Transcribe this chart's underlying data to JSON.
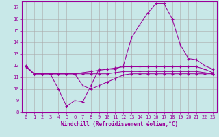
{
  "background_color": "#c8e8e8",
  "line_color": "#990099",
  "grid_color": "#aaaaaa",
  "xlabel": "Windchill (Refroidissement éolien,°C)",
  "xlabel_color": "#990099",
  "ylim": [
    8,
    17.5
  ],
  "xlim": [
    -0.5,
    23.5
  ],
  "xticks": [
    0,
    1,
    2,
    3,
    4,
    5,
    6,
    7,
    8,
    9,
    10,
    11,
    12,
    13,
    14,
    15,
    16,
    17,
    18,
    19,
    20,
    21,
    22,
    23
  ],
  "yticks": [
    8,
    9,
    10,
    11,
    12,
    13,
    14,
    15,
    16,
    17
  ],
  "line1_x": [
    0,
    1,
    2,
    3,
    4,
    5,
    6,
    7,
    8,
    9,
    10,
    11,
    12,
    13,
    14,
    15,
    16,
    17,
    18,
    19,
    20,
    21,
    22,
    23
  ],
  "line1_y": [
    12.0,
    11.3,
    11.3,
    11.3,
    10.0,
    8.5,
    9.0,
    8.9,
    10.3,
    11.7,
    11.7,
    11.7,
    12.0,
    14.4,
    15.5,
    16.5,
    17.3,
    17.3,
    16.0,
    13.8,
    12.6,
    12.5,
    12.0,
    11.7
  ],
  "line2_x": [
    0,
    1,
    2,
    3,
    4,
    5,
    6,
    7,
    8,
    9,
    10,
    11,
    12,
    13,
    14,
    15,
    16,
    17,
    18,
    19,
    20,
    21,
    22,
    23
  ],
  "line2_y": [
    11.9,
    11.3,
    11.3,
    11.3,
    11.3,
    11.3,
    11.3,
    11.3,
    11.3,
    11.3,
    11.3,
    11.4,
    11.5,
    11.5,
    11.5,
    11.5,
    11.5,
    11.5,
    11.5,
    11.5,
    11.5,
    11.5,
    11.4,
    11.3
  ],
  "line3_x": [
    0,
    1,
    2,
    3,
    4,
    5,
    6,
    7,
    8,
    9,
    10,
    11,
    12,
    13,
    14,
    15,
    16,
    17,
    18,
    19,
    20,
    21,
    22,
    23
  ],
  "line3_y": [
    11.9,
    11.3,
    11.3,
    11.3,
    11.3,
    11.3,
    11.3,
    11.4,
    11.5,
    11.6,
    11.7,
    11.8,
    11.9,
    11.9,
    11.9,
    11.9,
    11.9,
    11.9,
    11.9,
    11.9,
    11.9,
    11.9,
    11.7,
    11.4
  ],
  "line4_x": [
    0,
    1,
    2,
    3,
    4,
    5,
    6,
    7,
    8,
    9,
    10,
    11,
    12,
    13,
    14,
    15,
    16,
    17,
    18,
    19,
    20,
    21,
    22,
    23
  ],
  "line4_y": [
    11.9,
    11.3,
    11.3,
    11.3,
    11.3,
    11.3,
    11.3,
    10.3,
    10.0,
    10.3,
    10.6,
    10.9,
    11.2,
    11.3,
    11.3,
    11.3,
    11.3,
    11.3,
    11.3,
    11.3,
    11.3,
    11.3,
    11.3,
    11.3
  ],
  "tick_fontsize": 5.0,
  "xlabel_fontsize": 5.5,
  "marker_size": 3.5,
  "linewidth": 0.75
}
